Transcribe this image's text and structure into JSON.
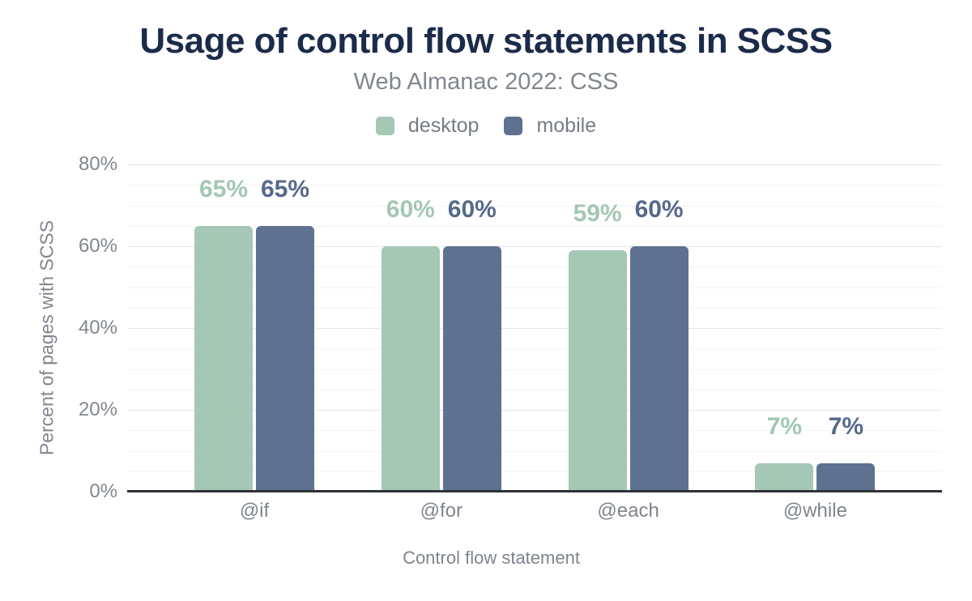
{
  "header": {
    "title": "Usage of control flow statements in SCSS",
    "subtitle": "Web Almanac 2022: CSS"
  },
  "chart_data": {
    "type": "bar",
    "title": "Usage of control flow statements in SCSS",
    "subtitle": "Web Almanac 2022: CSS",
    "xlabel": "Control flow statement",
    "ylabel": "Percent of pages with SCSS",
    "categories": [
      "@if",
      "@for",
      "@each",
      "@while"
    ],
    "series": [
      {
        "name": "desktop",
        "color": "#a5c8b6",
        "label_color": "#a2c7b3",
        "values": [
          65,
          60,
          59,
          7
        ]
      },
      {
        "name": "mobile",
        "color": "#5f7190",
        "label_color": "#56698b",
        "values": [
          65,
          60,
          60,
          7
        ]
      }
    ],
    "value_labels": [
      [
        "65%",
        "60%",
        "59%",
        "7%"
      ],
      [
        "65%",
        "60%",
        "60%",
        "7%"
      ]
    ],
    "ylim": [
      0,
      80
    ],
    "yticks": [
      0,
      20,
      40,
      60,
      80
    ],
    "ytick_labels": [
      "0%",
      "20%",
      "40%",
      "60%",
      "80%"
    ],
    "minor_grid_step": 5,
    "major_grid_step": 20,
    "grid": true,
    "legend_position": "top"
  },
  "colors": {
    "title_text": "#1b2b4a",
    "muted_text": "#81868f",
    "axis_baseline": "#2d3238",
    "grid_major": "#e4e6e9",
    "grid_minor": "#f3f4f6",
    "background": "#ffffff"
  }
}
